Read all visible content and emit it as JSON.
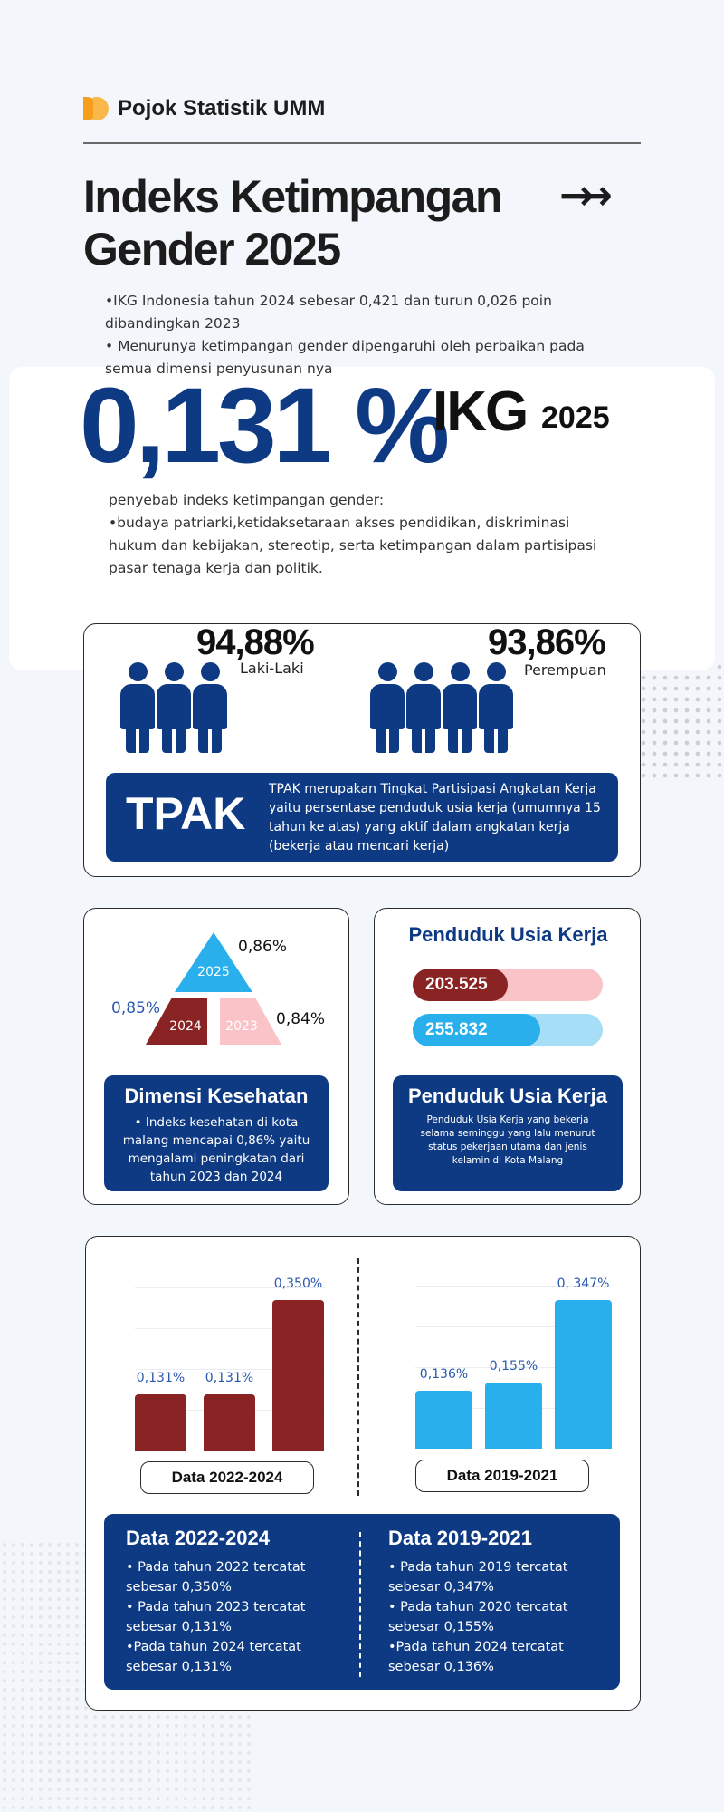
{
  "brand": {
    "name": "Pojok Statistik UMM"
  },
  "title": {
    "line1": "Indeks Ketimpangan",
    "line2": "Gender 2025",
    "arrows": "→→"
  },
  "intro": {
    "line1": "•IKG Indonesia tahun 2024 sebesar 0,421 dan turun 0,026 poin dibandingkan 2023",
    "line2": "• Menurunya ketimpangan gender dipengaruhi oleh perbaikan pada semua dimensi penyusunan nya"
  },
  "headline": {
    "value": "0,131 %",
    "ikg": "IKG",
    "year": "2025"
  },
  "cause": {
    "heading": "penyebab indeks ketimpangan gender:",
    "body": "•budaya patriarki,ketidaksetaraan akses pendidikan, diskriminasi hukum dan kebijakan, stereotip, serta ketimpangan dalam partisipasi pasar tenaga kerja dan politik."
  },
  "tpak": {
    "male_value": "94,88%",
    "male_label": "Laki-Laki",
    "female_value": "93,86%",
    "female_label": "Perempuan",
    "title": "TPAK",
    "description": "TPAK merupakan Tingkat Partisipasi Angkatan Kerja yaitu persentase penduduk usia kerja (umumnya 15 tahun ke atas) yang aktif dalam angkatan kerja (bekerja atau mencari kerja)"
  },
  "kesehatan": {
    "year_2025": "2025",
    "year_2024": "2024",
    "year_2023": "2023",
    "value_2025": "0,86%",
    "value_2024": "0,85%",
    "value_2023": "0,84%",
    "title": "Dimensi Kesehatan",
    "description": "• Indeks kesehatan di kota malang mencapai 0,86% yaitu mengalami peningkatan dari tahun 2023 dan 2024",
    "colors": {
      "2025": "#29b0ec",
      "2024": "#8a2323",
      "2023": "#f9c3c8"
    }
  },
  "usia_kerja": {
    "title": "Penduduk Usia Kerja",
    "bar1_value": "203.525",
    "bar2_value": "255.832",
    "bar1_fill": 0.5,
    "bar2_fill": 0.67,
    "box_title": "Penduduk Usia Kerja",
    "box_desc": "Penduduk Usia Kerja yang bekerja selama seminggu yang lalu menurut status pekerjaan utama dan jenis kelamin di Kota Malang"
  },
  "chart_data": [
    {
      "type": "bar",
      "title": "",
      "categories": [
        "",
        "",
        ""
      ],
      "values": [
        0.131,
        0.131,
        0.35
      ],
      "labels": [
        "0,131%",
        "0,131%",
        "0,350%"
      ],
      "color": "#8a2323",
      "caption": "Data 2022-2024",
      "ylim": [
        0,
        0.38
      ]
    },
    {
      "type": "bar",
      "title": "",
      "categories": [
        "",
        "",
        ""
      ],
      "values": [
        0.136,
        0.155,
        0.347
      ],
      "labels": [
        "0,136%",
        "0,155%",
        "0, 347%"
      ],
      "color": "#29b0ec",
      "caption": "Data 2019-2021",
      "ylim": [
        0,
        0.38
      ]
    }
  ],
  "summary": {
    "left_title": "Data 2022-2024",
    "left_items": [
      "• Pada tahun 2022 tercatat sebesar 0,350%",
      "• Pada tahun 2023 tercatat sebesar 0,131%",
      "•Pada tahun 2024 tercatat sebesar 0,131%"
    ],
    "right_title": "Data 2019-2021",
    "right_items": [
      "• Pada tahun 2019 tercatat sebesar 0,347%",
      "• Pada tahun 2020 tercatat sebesar 0,155%",
      "•Pada tahun 2024 tercatat sebesar 0,136%"
    ]
  }
}
